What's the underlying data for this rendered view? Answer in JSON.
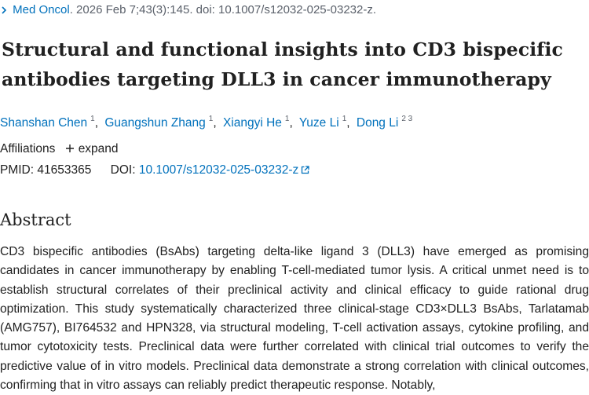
{
  "citation": {
    "journal": "Med Oncol",
    "details": ". 2026 Feb 7;43(3):145. doi: 10.1007/s12032-025-03232-z."
  },
  "title": "Structural and functional insights into CD3 bispecific antibodies targeting DLL3 in cancer immunotherapy",
  "authors": [
    {
      "name": "Shanshan Chen",
      "affil": "1",
      "sep": ","
    },
    {
      "name": "Guangshun Zhang",
      "affil": "1",
      "sep": ","
    },
    {
      "name": "Xiangyi He",
      "affil": "1",
      "sep": ","
    },
    {
      "name": "Yuze Li",
      "affil": "1",
      "sep": ","
    },
    {
      "name": "Dong Li",
      "affil": "2 3",
      "sep": ""
    }
  ],
  "affiliations": {
    "label": "Affiliations",
    "expand_label": "expand"
  },
  "identifiers": {
    "pmid_label": "PMID:",
    "pmid": "41653365",
    "doi_label": "DOI:",
    "doi": "10.1007/s12032-025-03232-z"
  },
  "abstract": {
    "heading": "Abstract",
    "text": "CD3 bispecific antibodies (BsAbs) targeting delta-like ligand 3 (DLL3) have emerged as promising candidates in cancer immunotherapy by enabling T-cell-mediated tumor lysis. A critical unmet need is to establish structural correlates of their preclinical activity and clinical efficacy to guide rational drug optimization. This study systematically characterized three clinical-stage CD3×DLL3 BsAbs, Tarlatamab (AMG757), BI764532 and HPN328, via structural modeling, T-cell activation assays, cytokine profiling, and tumor cytotoxicity tests. Preclinical data were further correlated with clinical trial outcomes to verify the predictive value of in vitro models. Preclinical data demonstrate a strong correlation with clinical outcomes, confirming that in vitro assays can reliably predict therapeutic response. Notably,"
  }
}
